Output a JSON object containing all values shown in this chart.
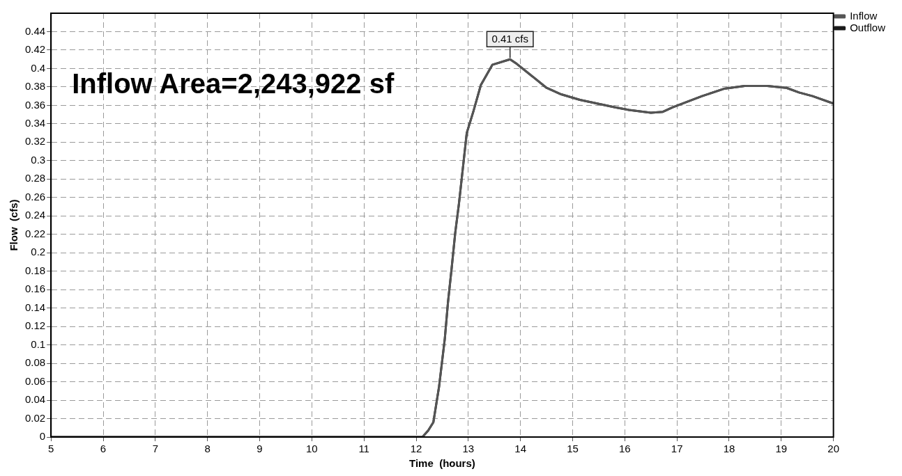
{
  "chart_data": {
    "type": "line",
    "xlabel": "Time  (hours)",
    "ylabel": "Flow  (cfs)",
    "annotations": [
      "Inflow Area=2,243,922 sf",
      {
        "text": "0.41 cfs",
        "x": 13.8,
        "y": 0.41
      }
    ],
    "x": [
      5,
      6,
      7,
      8,
      9,
      10,
      11,
      12,
      12.12,
      12.23,
      12.33,
      12.44,
      12.55,
      12.61,
      12.68,
      12.75,
      12.82,
      12.97,
      13.1,
      13.24,
      13.46,
      13.8,
      13.93,
      14.26,
      14.5,
      14.78,
      15.14,
      15.8,
      16.08,
      16.5,
      16.73,
      16.92,
      17.48,
      17.9,
      18.3,
      18.73,
      19.1,
      19.34,
      19.6,
      20
    ],
    "series": [
      {
        "name": "Inflow",
        "color": "#555555",
        "values": [
          0,
          0,
          0,
          0,
          0,
          0,
          0,
          0,
          0,
          0.007,
          0.016,
          0.055,
          0.107,
          0.146,
          0.183,
          0.222,
          0.253,
          0.33,
          0.354,
          0.382,
          0.404,
          0.41,
          0.405,
          0.39,
          0.379,
          0.372,
          0.366,
          0.358,
          0.355,
          0.352,
          0.353,
          0.358,
          0.37,
          0.378,
          0.381,
          0.381,
          0.379,
          0.374,
          0.37,
          0.362
        ]
      },
      {
        "name": "Outflow",
        "color": "#1a1a1a",
        "values": [
          0,
          0,
          0,
          0,
          0,
          0,
          0,
          0,
          0,
          0.007,
          0.016,
          0.055,
          0.107,
          0.146,
          0.183,
          0.222,
          0.253,
          0.33,
          0.354,
          0.382,
          0.404,
          0.41,
          0.405,
          0.39,
          0.379,
          0.372,
          0.366,
          0.358,
          0.355,
          0.352,
          0.353,
          0.358,
          0.37,
          0.378,
          0.381,
          0.381,
          0.379,
          0.374,
          0.37,
          0.362
        ]
      }
    ],
    "xlim": [
      5,
      20
    ],
    "xticks": [
      5,
      6,
      7,
      8,
      9,
      10,
      11,
      12,
      13,
      14,
      15,
      16,
      17,
      18,
      19,
      20
    ],
    "ylim": [
      0,
      0.46
    ],
    "yticks": [
      0,
      0.02,
      0.04,
      0.06,
      0.08,
      0.1,
      0.12,
      0.14,
      0.16,
      0.18,
      0.2,
      0.22,
      0.24,
      0.26,
      0.28,
      0.3,
      0.32,
      0.34,
      0.36,
      0.38,
      0.4,
      0.42,
      0.44
    ],
    "grid": true,
    "legend": "top right",
    "marker": "none",
    "line_style": "solid"
  }
}
